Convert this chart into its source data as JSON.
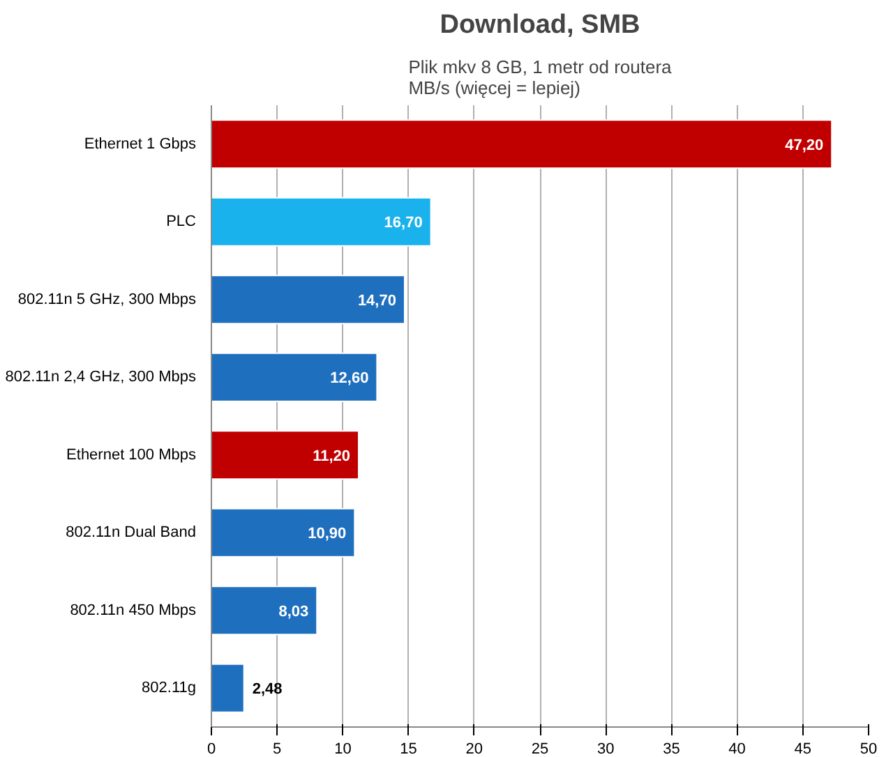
{
  "chart_data": {
    "type": "bar",
    "orientation": "horizontal",
    "title": "Download, SMB",
    "subtitle": "Plik mkv 8 GB, 1 metr od routera\nMB/s (więcej = lepiej)",
    "categories": [
      "Ethernet 1 Gbps",
      "PLC",
      "802.11n 5 GHz, 300 Mbps",
      "802.11n 2,4 GHz, 300 Mbps",
      "Ethernet 100 Mbps",
      "802.11n Dual Band",
      "802.11n 450 Mbps",
      "802.11g"
    ],
    "values": [
      47.2,
      16.7,
      14.7,
      12.6,
      11.2,
      10.9,
      8.03,
      2.48
    ],
    "value_labels": [
      "47,20",
      "16,70",
      "14,70",
      "12,60",
      "11,20",
      "10,90",
      "8,03",
      "2,48"
    ],
    "colors": [
      "#c00000",
      "#1ab2ec",
      "#1f6fbf",
      "#1f6fbf",
      "#c00000",
      "#1f6fbf",
      "#1f6fbf",
      "#1f6fbf"
    ],
    "xlim": [
      0,
      50
    ],
    "xticks": [
      0,
      5,
      10,
      15,
      20,
      25,
      30,
      35,
      40,
      45,
      50
    ],
    "grid": "x"
  }
}
